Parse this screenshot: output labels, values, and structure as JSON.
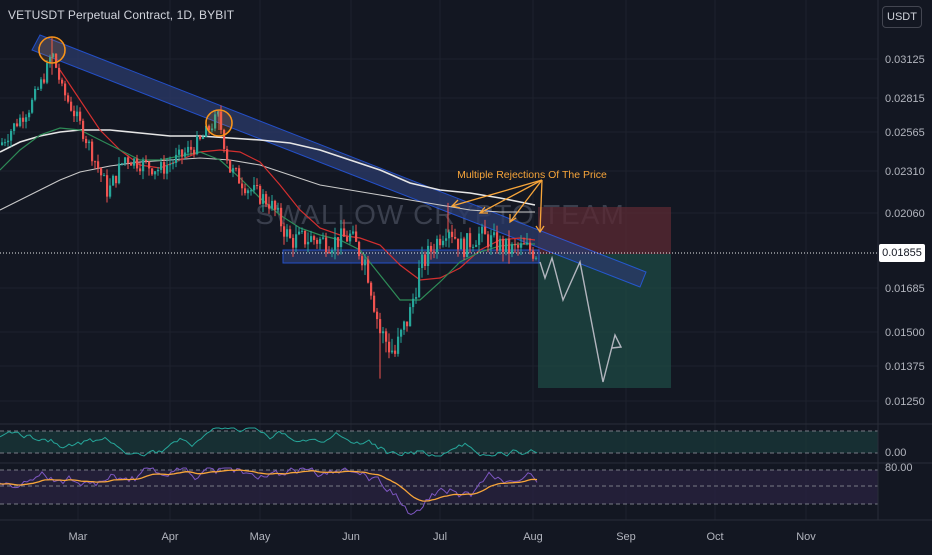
{
  "header": {
    "title": "VETUSDT Perpetual Contract, 1D, BYBIT",
    "currency": "USDT"
  },
  "watermark": "SWALLOW CRYPTO TEAM",
  "annotation": "Multiple Rejections Of The Price",
  "last_price": "0.01855",
  "colors": {
    "background": "#131722",
    "up": "#26a69a",
    "down": "#ef5350",
    "channel": "#2962ff",
    "circle": "#f7931a",
    "ma_white": "#e6e6e6",
    "ma_red": "#d32f2f",
    "ma_green": "#2e8b57",
    "annotation": "#f7a53a",
    "oscillator": "#26a69a",
    "rsi": "#7e57c2",
    "rsi_ma": "#f7a53a"
  },
  "chart_data": {
    "type": "candlestick",
    "symbol": "VETUSDT",
    "interval": "1D",
    "exchange": "BYBIT",
    "x_ticks": [
      "Mar",
      "Apr",
      "May",
      "Jun",
      "Jul",
      "Aug",
      "Sep",
      "Oct",
      "Nov"
    ],
    "y_ticks": [
      "0.03125",
      "0.02815",
      "0.02565",
      "0.02310",
      "0.02060",
      "0.01855",
      "0.01685",
      "0.01500",
      "0.01375",
      "0.01250"
    ],
    "last_price": 0.01855,
    "oscillator_label": "0.00",
    "rsi_label": "80.00"
  }
}
